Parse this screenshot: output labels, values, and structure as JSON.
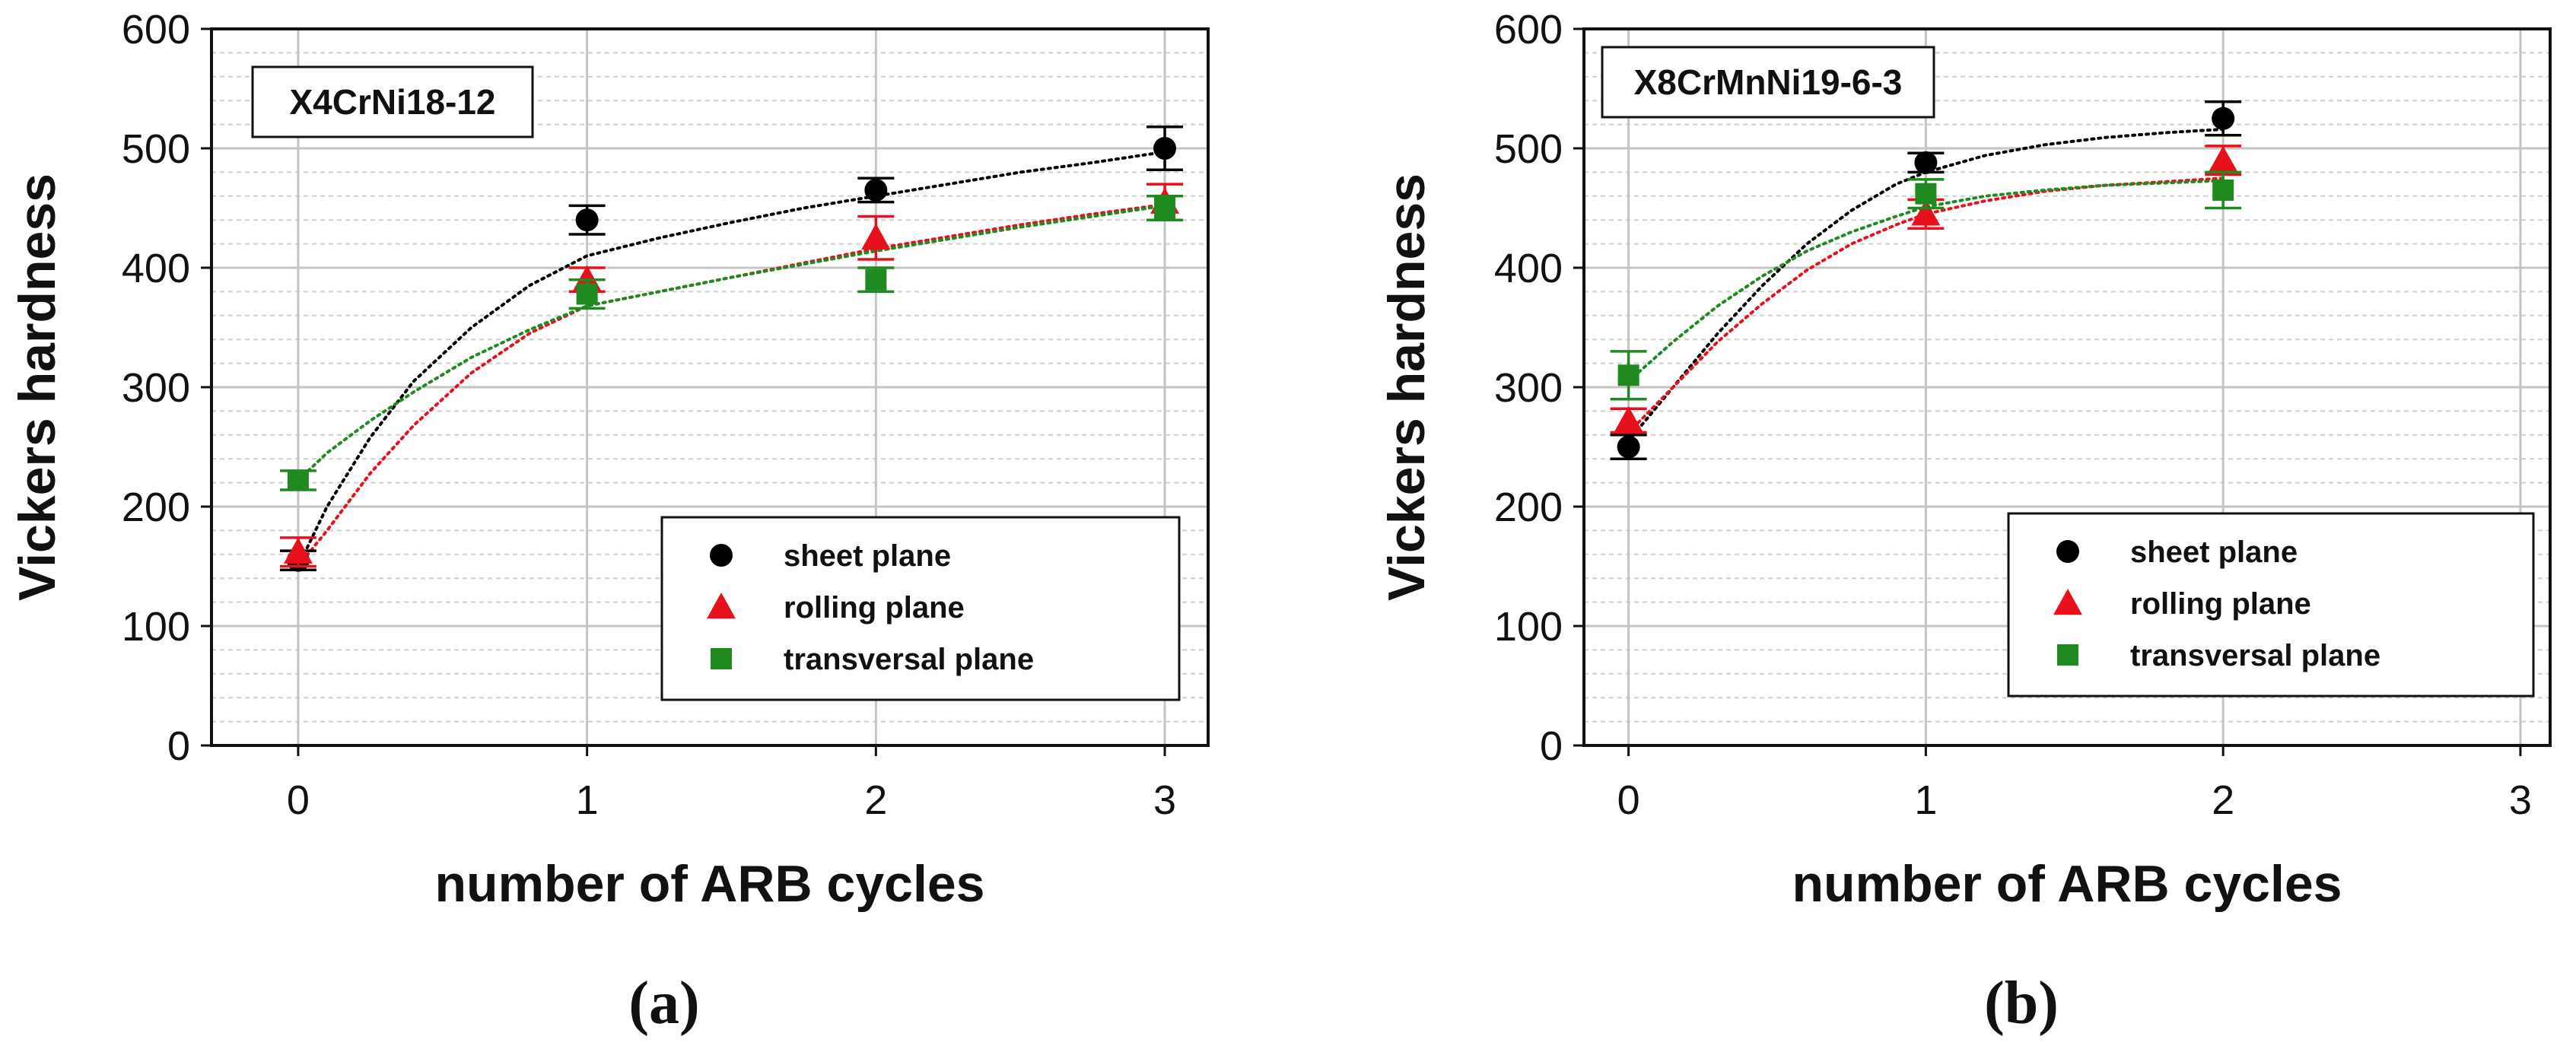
{
  "chart_data": [
    {
      "type": "scatter",
      "panel_label": "(a)",
      "material": "X4CrNi18-12",
      "xlabel": "number of ARB cycles",
      "ylabel": "Vickers hardness",
      "xlim": [
        -0.3,
        3.15
      ],
      "ylim": [
        0,
        600
      ],
      "xticks": [
        "0",
        "1",
        "2",
        "3"
      ],
      "yticks": [
        "0",
        "100",
        "200",
        "300",
        "400",
        "500",
        "600"
      ],
      "grid": true,
      "legend_position": "bottom-right",
      "trendlines": "dotted fit curves per series",
      "series": [
        {
          "name": "sheet plane",
          "marker": "circle",
          "color": "#000000",
          "x": [
            0,
            1,
            2,
            3
          ],
          "values": [
            155,
            440,
            465,
            500
          ],
          "errors": [
            8,
            12,
            10,
            18
          ],
          "fit": {
            "x": [
              0,
              0.1,
              0.25,
              0.4,
              0.6,
              0.8,
              1,
              1.25,
              1.5,
              1.75,
              2,
              2.25,
              2.5,
              2.75,
              3
            ],
            "y": [
              150,
              200,
              258,
              305,
              350,
              385,
              410,
              425,
              438,
              450,
              460,
              470,
              480,
              488,
              497
            ]
          }
        },
        {
          "name": "rolling plane",
          "marker": "triangle",
          "color": "#e8101a",
          "x": [
            0,
            1,
            2,
            3
          ],
          "values": [
            162,
            390,
            425,
            455
          ],
          "errors": [
            12,
            10,
            18,
            15
          ],
          "fit": {
            "x": [
              0,
              0.1,
              0.25,
              0.4,
              0.6,
              0.8,
              1,
              1.25,
              1.5,
              1.75,
              2,
              2.25,
              2.5,
              2.75,
              3
            ],
            "y": [
              150,
              180,
              228,
              268,
              312,
              345,
              368,
              380,
              392,
              404,
              416,
              426,
              436,
              445,
              453
            ]
          }
        },
        {
          "name": "transversal plane",
          "marker": "square",
          "color": "#1f8a1f",
          "x": [
            0,
            1,
            2,
            3
          ],
          "values": [
            222,
            378,
            390,
            450
          ],
          "errors": [
            8,
            12,
            10,
            10
          ],
          "fit": {
            "x": [
              0,
              0.1,
              0.25,
              0.4,
              0.6,
              0.8,
              1,
              1.25,
              1.5,
              1.75,
              2,
              2.25,
              2.5,
              2.75,
              3
            ],
            "y": [
              222,
              245,
              272,
              296,
              325,
              348,
              368,
              380,
              392,
              403,
              414,
              424,
              434,
              443,
              452
            ]
          }
        }
      ]
    },
    {
      "type": "scatter",
      "panel_label": "(b)",
      "material": "X8CrMnNi19-6-3",
      "xlabel": "number of ARB cycles",
      "ylabel": "Vickers hardness",
      "xlim": [
        -0.15,
        3.1
      ],
      "ylim": [
        0,
        600
      ],
      "xticks": [
        "0",
        "1",
        "2",
        "3"
      ],
      "yticks": [
        "0",
        "100",
        "200",
        "300",
        "400",
        "500",
        "600"
      ],
      "grid": true,
      "legend_position": "bottom-right",
      "trendlines": "dotted fit curves per series",
      "series": [
        {
          "name": "sheet plane",
          "marker": "circle",
          "color": "#000000",
          "x": [
            0,
            1,
            2
          ],
          "values": [
            250,
            488,
            525
          ],
          "errors": [
            10,
            8,
            14
          ],
          "fit": {
            "x": [
              0,
              0.15,
              0.3,
              0.45,
              0.6,
              0.75,
              0.9,
              1,
              1.2,
              1.4,
              1.6,
              1.8,
              2
            ],
            "y": [
              255,
              300,
              345,
              385,
              420,
              448,
              470,
              480,
              494,
              503,
              509,
              513,
              516
            ]
          }
        },
        {
          "name": "rolling plane",
          "marker": "triangle",
          "color": "#e8101a",
          "x": [
            0,
            1,
            2
          ],
          "values": [
            272,
            445,
            490
          ],
          "errors": [
            10,
            12,
            12
          ],
          "fit": {
            "x": [
              0,
              0.15,
              0.3,
              0.45,
              0.6,
              0.75,
              0.9,
              1,
              1.2,
              1.4,
              1.6,
              1.8,
              2
            ],
            "y": [
              262,
              300,
              338,
              370,
              398,
              420,
              436,
              445,
              456,
              464,
              469,
              472,
              475
            ]
          }
        },
        {
          "name": "transversal plane",
          "marker": "square",
          "color": "#1f8a1f",
          "x": [
            0,
            1,
            2
          ],
          "values": [
            310,
            462,
            465
          ],
          "errors": [
            20,
            12,
            15
          ],
          "fit": {
            "x": [
              0,
              0.15,
              0.3,
              0.45,
              0.6,
              0.75,
              0.9,
              1,
              1.2,
              1.4,
              1.6,
              1.8,
              2
            ],
            "y": [
              305,
              338,
              368,
              393,
              414,
              430,
              443,
              451,
              460,
              465,
              469,
              471,
              473
            ]
          }
        }
      ]
    }
  ]
}
